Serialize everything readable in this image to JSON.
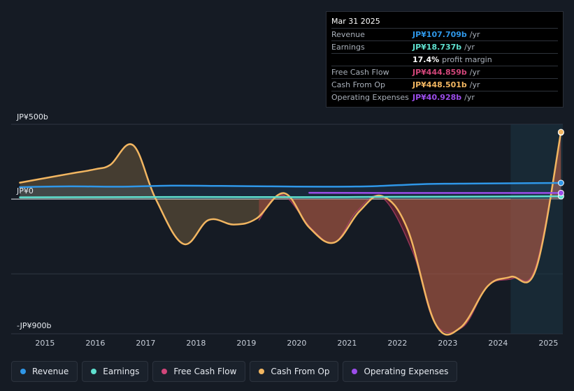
{
  "tooltip": {
    "date": "Mar 31 2025",
    "rows": [
      {
        "label": "Revenue",
        "value": "JP¥107.709b",
        "unit": "/yr",
        "color": "#2f97e8"
      },
      {
        "label": "Earnings",
        "value": "JP¥18.737b",
        "unit": "/yr",
        "color": "#5fe0cf"
      },
      {
        "label": "",
        "value": "17.4%",
        "unit": "profit margin",
        "color": "#ffffff"
      },
      {
        "label": "Free Cash Flow",
        "value": "JP¥444.859b",
        "unit": "/yr",
        "color": "#d2467a"
      },
      {
        "label": "Cash From Op",
        "value": "JP¥448.501b",
        "unit": "/yr",
        "color": "#f2b661"
      },
      {
        "label": "Operating Expenses",
        "value": "JP¥40.928b",
        "unit": "/yr",
        "color": "#9b4dea"
      }
    ]
  },
  "legend": [
    {
      "label": "Revenue",
      "color": "#2f97e8"
    },
    {
      "label": "Earnings",
      "color": "#5fe0cf"
    },
    {
      "label": "Free Cash Flow",
      "color": "#d2467a"
    },
    {
      "label": "Cash From Op",
      "color": "#f2b661"
    },
    {
      "label": "Operating Expenses",
      "color": "#9b4dea"
    }
  ],
  "chart_data": {
    "type": "area",
    "y_axis_labels": [
      "JP¥500b",
      "JP¥0",
      "-JP¥900b"
    ],
    "ylim": [
      -900,
      500
    ],
    "xlim": [
      2014.3,
      2025.3
    ],
    "x_ticks": [
      "2015",
      "2016",
      "2017",
      "2018",
      "2019",
      "2020",
      "2021",
      "2022",
      "2023",
      "2024",
      "2025"
    ],
    "grid": true,
    "forecast_band_start": 2024.25,
    "series": [
      {
        "name": "Revenue",
        "color": "#2f97e8",
        "x": [
          2014.5,
          2015.5,
          2016.5,
          2017.5,
          2018.5,
          2019.5,
          2020.5,
          2021.5,
          2022.5,
          2023.5,
          2024.5,
          2025.25
        ],
        "y": [
          80,
          85,
          83,
          90,
          88,
          85,
          83,
          86,
          100,
          104,
          106,
          108
        ]
      },
      {
        "name": "Earnings",
        "color": "#5fe0cf",
        "x": [
          2014.5,
          2016.0,
          2018.0,
          2020.0,
          2022.0,
          2024.0,
          2025.25
        ],
        "y": [
          12,
          13,
          14,
          13,
          15,
          17,
          19
        ]
      },
      {
        "name": "Free Cash Flow",
        "color": "#d2467a",
        "x": [
          2019.25,
          2019.7,
          2020.3,
          2020.75,
          2021.2,
          2021.7,
          2022.3,
          2022.75,
          2023.3,
          2023.8,
          2024.3,
          2024.75,
          2025.25
        ],
        "y": [
          -140,
          30,
          -200,
          -290,
          -80,
          10,
          -350,
          -830,
          -855,
          -580,
          -530,
          -450,
          445
        ]
      },
      {
        "name": "Cash From Op",
        "color": "#f2b661",
        "x": [
          2014.5,
          2015.0,
          2015.5,
          2016.0,
          2016.3,
          2016.75,
          2017.2,
          2017.75,
          2018.25,
          2018.75,
          2019.2,
          2019.75,
          2020.25,
          2020.75,
          2021.25,
          2021.7,
          2022.2,
          2022.75,
          2023.25,
          2023.8,
          2024.25,
          2024.75,
          2025.25
        ],
        "y": [
          110,
          140,
          170,
          200,
          230,
          360,
          0,
          -300,
          -140,
          -170,
          -130,
          40,
          -190,
          -290,
          -80,
          20,
          -200,
          -830,
          -860,
          -580,
          -520,
          -470,
          448
        ]
      },
      {
        "name": "Operating Expenses",
        "color": "#9b4dea",
        "x": [
          2020.25,
          2022.0,
          2024.0,
          2025.25
        ],
        "y": [
          42,
          41,
          41,
          41
        ]
      }
    ]
  }
}
